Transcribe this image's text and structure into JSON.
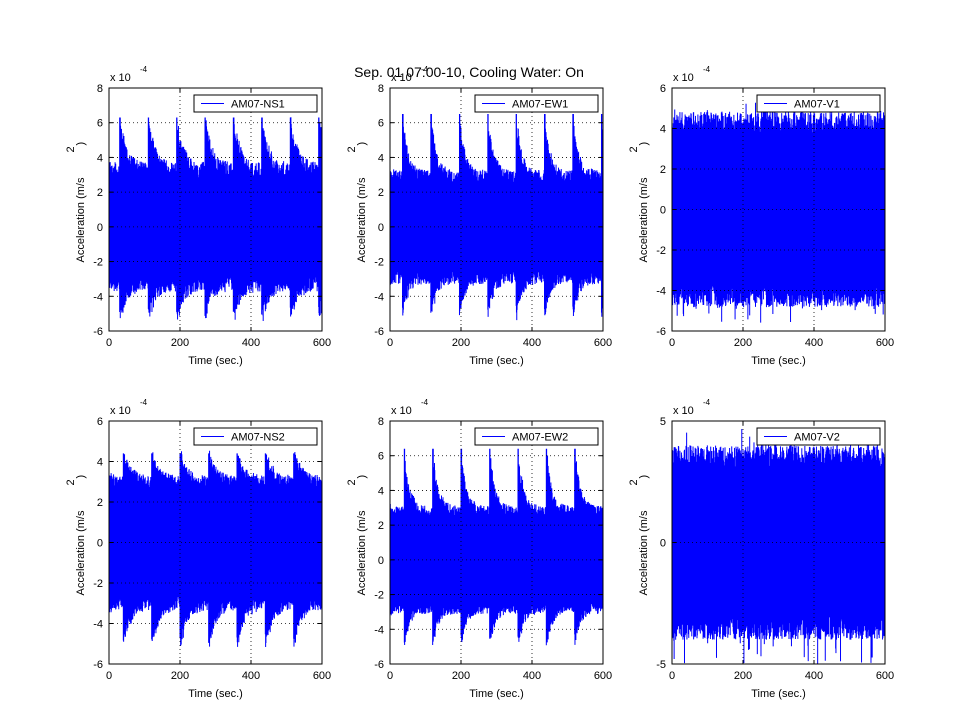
{
  "title": "Sep. 01 07:00-10, Cooling Water: On",
  "colors": {
    "signal": "#0000ff",
    "axes": "#000000",
    "grid": "#000000",
    "background": "#ffffff"
  },
  "chart_data": [
    {
      "type": "line",
      "legend": "AM07-NS1",
      "legend_position": "top-right",
      "xlabel": "Time (sec.)",
      "ylabel": "Acceleration (m/s²)",
      "ylabel_main": "Acceleration (m/s",
      "ylabel_sup": "2",
      "ylabel_close": ")",
      "exponent_prefix": "x 10",
      "exponent_power": "-4",
      "xlim": [
        0,
        600
      ],
      "ylim": [
        -6,
        8
      ],
      "xticks": [
        "0",
        "200",
        "400",
        "600"
      ],
      "yticks": [
        "-6",
        "-4",
        "-2",
        "0",
        "2",
        "4",
        "6",
        "8"
      ],
      "grid": true,
      "envelope_base": [
        3.0,
        -3.0
      ],
      "envelope_jitter": 1.0,
      "peak_period_s": 80,
      "peak_phase_s": 30,
      "peak_max": [
        6.3,
        -5.3
      ],
      "peak_decay_s": 18
    },
    {
      "type": "line",
      "legend": "AM07-EW1",
      "legend_position": "top-right",
      "xlabel": "Time (sec.)",
      "ylabel": "Acceleration (m/s²)",
      "ylabel_main": "Acceleration (m/s",
      "ylabel_sup": "2",
      "ylabel_close": ")",
      "exponent_prefix": "x 10",
      "exponent_power": "-4",
      "xlim": [
        0,
        600
      ],
      "ylim": [
        -6,
        8
      ],
      "xticks": [
        "0",
        "200",
        "400",
        "600"
      ],
      "yticks": [
        "-6",
        "-4",
        "-2",
        "0",
        "2",
        "4",
        "6",
        "8"
      ],
      "grid": true,
      "envelope_base": [
        2.7,
        -2.7
      ],
      "envelope_jitter": 0.8,
      "peak_period_s": 80,
      "peak_phase_s": 35,
      "peak_max": [
        6.5,
        -5.2
      ],
      "peak_decay_s": 15
    },
    {
      "type": "line",
      "legend": "AM07-V1",
      "legend_position": "top-right",
      "xlabel": "Time (sec.)",
      "ylabel": "Acceleration (m/s²)",
      "ylabel_main": "Acceleration (m/s",
      "ylabel_sup": "2",
      "ylabel_close": ")",
      "exponent_prefix": "x 10",
      "exponent_power": "-4",
      "xlim": [
        0,
        600
      ],
      "ylim": [
        -6,
        6
      ],
      "xticks": [
        "0",
        "200",
        "400",
        "600"
      ],
      "yticks": [
        "-6",
        "-4",
        "-2",
        "0",
        "2",
        "4",
        "6"
      ],
      "grid": true,
      "envelope_base": [
        4.0,
        -4.0
      ],
      "envelope_jitter": 1.2,
      "peak_period_s": 0,
      "peak_phase_s": 0,
      "peak_max": [
        5.5,
        -5.6
      ],
      "peak_decay_s": 0
    },
    {
      "type": "line",
      "legend": "AM07-NS2",
      "legend_position": "top-right",
      "xlabel": "Time (sec.)",
      "ylabel": "Acceleration (m/s²)",
      "ylabel_main": "Acceleration (m/s",
      "ylabel_sup": "2",
      "ylabel_close": ")",
      "exponent_prefix": "x 10",
      "exponent_power": "-4",
      "xlim": [
        0,
        600
      ],
      "ylim": [
        -6,
        6
      ],
      "xticks": [
        "0",
        "200",
        "400",
        "600"
      ],
      "yticks": [
        "-6",
        "-4",
        "-2",
        "0",
        "2",
        "4",
        "6"
      ],
      "grid": true,
      "envelope_base": [
        2.8,
        -2.8
      ],
      "envelope_jitter": 0.7,
      "peak_period_s": 80,
      "peak_phase_s": 40,
      "peak_max": [
        4.4,
        -5.2
      ],
      "peak_decay_s": 20
    },
    {
      "type": "line",
      "legend": "AM07-EW2",
      "legend_position": "top-right",
      "xlabel": "Time (sec.)",
      "ylabel": "Acceleration (m/s²)",
      "ylabel_main": "Acceleration (m/s",
      "ylabel_sup": "2",
      "ylabel_close": ")",
      "exponent_prefix": "x 10",
      "exponent_power": "-4",
      "xlim": [
        0,
        600
      ],
      "ylim": [
        -6,
        8
      ],
      "xticks": [
        "0",
        "200",
        "400",
        "600"
      ],
      "yticks": [
        "-6",
        "-4",
        "-2",
        "0",
        "2",
        "4",
        "6",
        "8"
      ],
      "grid": true,
      "envelope_base": [
        2.6,
        -2.6
      ],
      "envelope_jitter": 0.7,
      "peak_period_s": 80,
      "peak_phase_s": 40,
      "peak_max": [
        6.4,
        -5.0
      ],
      "peak_decay_s": 15
    },
    {
      "type": "line",
      "legend": "AM07-V2",
      "legend_position": "top-right",
      "xlabel": "Time (sec.)",
      "ylabel": "Acceleration (m/s²)",
      "ylabel_main": "Acceleration (m/s",
      "ylabel_sup": "2",
      "ylabel_close": ")",
      "exponent_prefix": "x 10",
      "exponent_power": "-4",
      "xlim": [
        0,
        600
      ],
      "ylim": [
        -5,
        5
      ],
      "xticks": [
        "0",
        "200",
        "400",
        "600"
      ],
      "yticks": [
        "-5",
        "0",
        "5"
      ],
      "grid": true,
      "envelope_base": [
        3.3,
        -3.3
      ],
      "envelope_jitter": 1.0,
      "peak_period_s": 0,
      "peak_phase_s": 0,
      "peak_max": [
        4.8,
        -5.0
      ],
      "peak_decay_s": 0
    }
  ]
}
